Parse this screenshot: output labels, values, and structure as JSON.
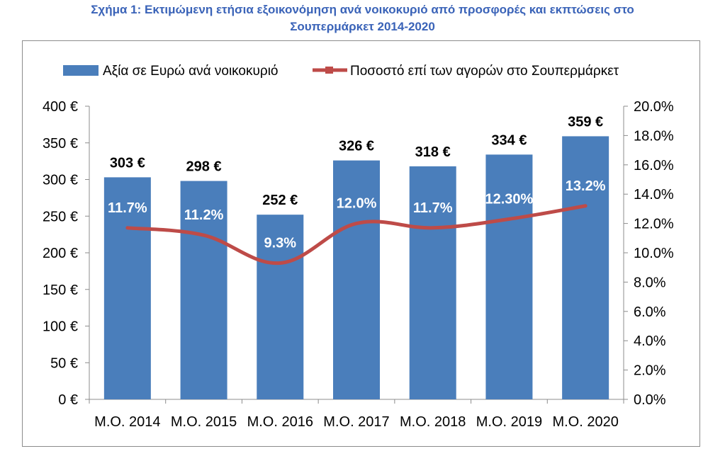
{
  "title_line1": "Σχήμα 1: Εκτιμώμενη ετήσια εξοικονόμηση ανά νοικοκυριό από προσφορές και εκπτώσεις στο",
  "title_line2": "Σουπερμάρκετ 2014-2020",
  "chart_data": {
    "type": "bar",
    "categories": [
      "Μ.Ο. 2014",
      "Μ.Ο. 2015",
      "Μ.Ο. 2016",
      "Μ.Ο. 2017",
      "Μ.Ο. 2018",
      "Μ.Ο. 2019",
      "Μ.Ο. 2020"
    ],
    "series": [
      {
        "name": "Αξία σε Ευρώ ανά νοικοκυριό",
        "type": "bar",
        "axis": "left",
        "values": [
          303,
          298,
          252,
          326,
          318,
          334,
          359
        ],
        "labels": [
          "303 €",
          "298 €",
          "252 €",
          "326 €",
          "318 €",
          "334 €",
          "359 €"
        ],
        "color": "#4a7ebb"
      },
      {
        "name": "Ποσοστό επί των αγορών στο Σουπερμάρκετ",
        "type": "line",
        "axis": "right",
        "values": [
          11.7,
          11.2,
          9.3,
          12.0,
          11.7,
          12.3,
          13.2
        ],
        "labels": [
          "11.7%",
          "11.2%",
          "9.3%",
          "12.0%",
          "11.7%",
          "12.30%",
          "13.2%"
        ],
        "color": "#be4b48"
      }
    ],
    "y_left": {
      "min": 0,
      "max": 400,
      "step": 50,
      "tick_labels": [
        "0 €",
        "50 €",
        "100 €",
        "150 €",
        "200 €",
        "250 €",
        "300 €",
        "350 €",
        "400 €"
      ]
    },
    "y_right": {
      "min": 0,
      "max": 20,
      "step": 2,
      "tick_labels": [
        "0.0%",
        "2.0%",
        "4.0%",
        "6.0%",
        "8.0%",
        "10.0%",
        "12.0%",
        "14.0%",
        "16.0%",
        "18.0%",
        "20.0%"
      ]
    },
    "grid": false,
    "legend_position": "top"
  }
}
